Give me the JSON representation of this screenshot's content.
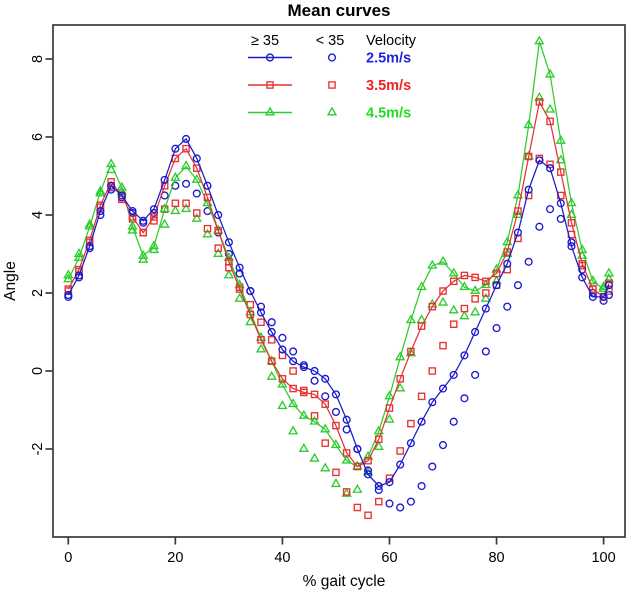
{
  "title": "Mean curves",
  "chart_data": {
    "type": "line",
    "title": "Mean curves",
    "xlabel": "% gait cycle",
    "ylabel": "Angle",
    "x_ticks": [
      0,
      20,
      40,
      60,
      80,
      100
    ],
    "y_ticks": [
      -2,
      0,
      2,
      4,
      6,
      8
    ],
    "xlim": [
      -3,
      104
    ],
    "ylim": [
      -4.3,
      8.9
    ],
    "grid": false,
    "legend_position": "top-center",
    "x": [
      0,
      2,
      4,
      6,
      8,
      10,
      12,
      14,
      16,
      18,
      20,
      22,
      24,
      26,
      28,
      30,
      32,
      34,
      36,
      38,
      40,
      42,
      44,
      46,
      48,
      50,
      52,
      54,
      56,
      58,
      60,
      62,
      64,
      66,
      68,
      70,
      72,
      74,
      76,
      78,
      80,
      82,
      84,
      86,
      88,
      90,
      92,
      94,
      96,
      98,
      100,
      101
    ],
    "series": [
      {
        "id": "lt35-4.5",
        "group": "< 35",
        "velocity": "4.5m/s",
        "marker": "triangle",
        "line": false,
        "color": "#2ecc2e",
        "values": [
          2.45,
          3.0,
          3.75,
          4.55,
          5.15,
          4.6,
          3.6,
          2.85,
          3.1,
          3.75,
          4.1,
          4.15,
          3.9,
          3.5,
          3.0,
          2.45,
          1.85,
          1.25,
          0.55,
          -0.15,
          -0.9,
          -1.55,
          -2.0,
          -2.25,
          -2.5,
          -2.9,
          -3.15,
          -3.05,
          -2.6,
          -1.95,
          -1.25,
          -0.45,
          0.45,
          1.3,
          1.7,
          1.75,
          1.55,
          1.4,
          1.5,
          1.85,
          2.3,
          3.0,
          4.0,
          5.5,
          7.0,
          6.7,
          5.4,
          4.0,
          2.95,
          2.3,
          2.15,
          2.35
        ]
      },
      {
        "id": "lt35-3.5",
        "group": "< 35",
        "velocity": "3.5m/s",
        "marker": "square",
        "line": false,
        "color": "#e63232",
        "values": [
          2.05,
          2.55,
          3.3,
          4.2,
          4.7,
          4.4,
          3.9,
          3.55,
          3.85,
          4.15,
          4.3,
          4.3,
          4.05,
          3.65,
          3.15,
          2.65,
          2.15,
          1.7,
          1.25,
          0.8,
          0.4,
          0.0,
          -0.5,
          -1.15,
          -1.85,
          -2.6,
          -3.1,
          -3.5,
          -3.7,
          -3.35,
          -2.75,
          -2.05,
          -1.35,
          -0.65,
          0.0,
          0.65,
          1.2,
          1.6,
          1.85,
          2.0,
          2.2,
          2.6,
          3.4,
          4.5,
          5.45,
          5.3,
          4.5,
          3.5,
          2.7,
          2.1,
          1.9,
          2.05
        ]
      },
      {
        "id": "lt35-2.5",
        "group": "< 35",
        "velocity": "2.5m/s",
        "marker": "circle",
        "line": false,
        "color": "#1a1acd",
        "values": [
          1.9,
          2.4,
          3.15,
          4.0,
          4.65,
          4.45,
          4.05,
          3.8,
          4.05,
          4.5,
          4.75,
          4.8,
          4.55,
          4.1,
          3.55,
          3.0,
          2.5,
          2.05,
          1.65,
          1.25,
          0.85,
          0.5,
          0.15,
          -0.25,
          -0.65,
          -1.05,
          -1.5,
          -2.0,
          -2.55,
          -3.05,
          -3.4,
          -3.5,
          -3.35,
          -2.95,
          -2.45,
          -1.9,
          -1.3,
          -0.7,
          -0.1,
          0.5,
          1.1,
          1.65,
          2.2,
          2.8,
          3.7,
          4.15,
          3.9,
          3.3,
          2.6,
          2.0,
          1.8,
          1.95
        ]
      },
      {
        "id": "ge35-4.5",
        "group": "≥ 35",
        "velocity": "4.5m/s",
        "marker": "triangle",
        "line": true,
        "color": "#2ecc2e",
        "values": [
          2.35,
          2.9,
          3.7,
          4.6,
          5.3,
          4.7,
          3.7,
          2.95,
          3.2,
          4.15,
          4.95,
          5.25,
          4.9,
          4.3,
          3.6,
          2.9,
          2.2,
          1.5,
          0.85,
          0.25,
          -0.35,
          -0.85,
          -1.15,
          -1.3,
          -1.5,
          -1.9,
          -2.3,
          -2.45,
          -2.2,
          -1.55,
          -0.65,
          0.35,
          1.3,
          2.15,
          2.7,
          2.8,
          2.5,
          2.15,
          2.05,
          2.2,
          2.6,
          3.3,
          4.5,
          6.3,
          8.45,
          7.6,
          5.9,
          4.3,
          3.1,
          2.3,
          2.1,
          2.5
        ]
      },
      {
        "id": "ge35-3.5",
        "group": "≥ 35",
        "velocity": "3.5m/s",
        "marker": "square",
        "line": true,
        "color": "#e63232",
        "values": [
          2.1,
          2.6,
          3.35,
          4.25,
          4.85,
          4.5,
          3.95,
          3.55,
          3.95,
          4.75,
          5.45,
          5.7,
          5.2,
          4.45,
          3.6,
          2.8,
          2.1,
          1.45,
          0.8,
          0.25,
          -0.2,
          -0.45,
          -0.55,
          -0.6,
          -0.85,
          -1.4,
          -2.1,
          -2.45,
          -2.3,
          -1.75,
          -0.95,
          -0.2,
          0.5,
          1.15,
          1.65,
          2.05,
          2.3,
          2.45,
          2.4,
          2.3,
          2.5,
          3.05,
          4.1,
          5.5,
          6.9,
          6.4,
          5.1,
          3.8,
          2.75,
          2.1,
          1.9,
          2.25
        ]
      },
      {
        "id": "ge35-2.5",
        "group": "≥ 35",
        "velocity": "2.5m/s",
        "marker": "circle",
        "line": true,
        "color": "#1a1acd",
        "values": [
          1.95,
          2.45,
          3.2,
          4.1,
          4.75,
          4.5,
          4.1,
          3.85,
          4.15,
          4.9,
          5.7,
          5.95,
          5.45,
          4.75,
          4.0,
          3.3,
          2.65,
          2.05,
          1.5,
          1.0,
          0.55,
          0.25,
          0.1,
          0.0,
          -0.2,
          -0.6,
          -1.25,
          -2.0,
          -2.65,
          -2.95,
          -2.85,
          -2.4,
          -1.85,
          -1.3,
          -0.8,
          -0.45,
          -0.1,
          0.4,
          1.0,
          1.6,
          2.2,
          2.75,
          3.55,
          4.65,
          5.4,
          5.2,
          4.3,
          3.2,
          2.4,
          1.9,
          1.9,
          2.2
        ]
      }
    ],
    "legend": {
      "col_headers": [
        "≥ 35",
        "< 35",
        "Velocity"
      ],
      "rows": [
        {
          "velocity": "2.5m/s",
          "marker": "circle",
          "color": "#1a1acd",
          "label_color": "#2222e0"
        },
        {
          "velocity": "3.5m/s",
          "marker": "square",
          "color": "#e63232",
          "label_color": "#ee2222"
        },
        {
          "velocity": "4.5m/s",
          "marker": "triangle",
          "color": "#2ecc2e",
          "label_color": "#22dd22"
        }
      ]
    }
  }
}
